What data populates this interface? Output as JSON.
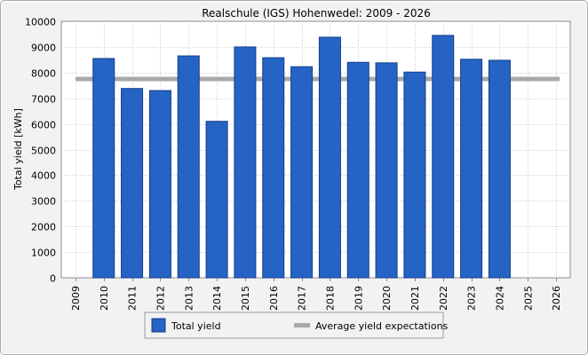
{
  "chart_data": {
    "type": "bar",
    "title": "Realschule (IGS) Hohenwedel: 2009 - 2026",
    "xlabel": "",
    "ylabel": "Total yield [kWh]",
    "ylim": [
      0,
      10000
    ],
    "yticks": [
      0,
      1000,
      2000,
      3000,
      4000,
      5000,
      6000,
      7000,
      8000,
      9000,
      10000
    ],
    "grid": true,
    "categories": [
      "2009",
      "2010",
      "2011",
      "2012",
      "2013",
      "2014",
      "2015",
      "2016",
      "2017",
      "2018",
      "2019",
      "2020",
      "2021",
      "2022",
      "2023",
      "2024",
      "2025",
      "2026"
    ],
    "series": [
      {
        "name": "Total yield",
        "kind": "bar",
        "values": [
          null,
          8550,
          7380,
          7300,
          8650,
          6100,
          9000,
          8580,
          8230,
          9380,
          8400,
          8380,
          8020,
          9450,
          8520,
          8480,
          null,
          null
        ]
      },
      {
        "name": "Average yield expectations",
        "kind": "line",
        "value": 7750
      }
    ],
    "legend": {
      "placement": "bottom-center",
      "items": [
        {
          "label": "Total yield",
          "kind": "bar"
        },
        {
          "label": "Average yield expectations",
          "kind": "line"
        }
      ]
    },
    "colors": {
      "bar_fill": "#2563c4",
      "bar_stroke": "#123f8a",
      "average_line": "#a9a9a9",
      "grid": "#c8c8c8",
      "plot_background": "#ffffff"
    }
  }
}
